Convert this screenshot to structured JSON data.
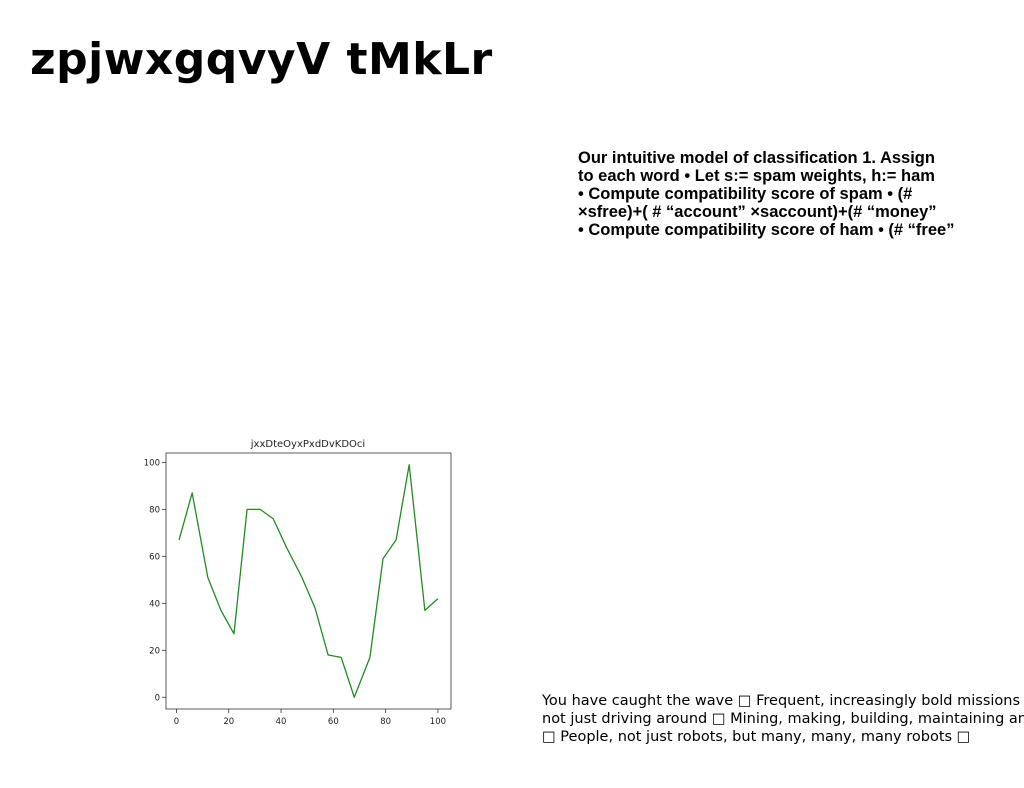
{
  "slide": {
    "title": "zpjwxgqvyV tMkLr"
  },
  "text_top": {
    "lines": [
      "Our intuitive model of classification 1. Assign",
      "to each word • Let s:= spam weights, h:= ham",
      "• Compute compatibility score of spam • (#",
      "×sfree)+( # “account” ×saccount)+(# “money”",
      "• Compute compatibility score of ham • (# “free”"
    ]
  },
  "text_bottom": {
    "lines": [
      "You have caught the wave □ Frequent, increasingly bold missions □",
      "not just driving around □ Mining, making, building, maintaining and",
      "□ People, not just robots, but many, many, many robots □"
    ]
  },
  "chart_data": {
    "type": "line",
    "title": "jxxDteOyxPxdDvKDOci",
    "xlabel": "",
    "ylabel": "",
    "xlim": [
      -4,
      105
    ],
    "ylim": [
      -5,
      104
    ],
    "xticks": [
      0,
      20,
      40,
      60,
      80,
      100
    ],
    "yticks": [
      0,
      20,
      40,
      60,
      80,
      100
    ],
    "grid": false,
    "line_color": "#228b22",
    "series": [
      {
        "x": [
          1,
          6,
          12,
          17,
          22,
          27,
          32,
          37,
          42,
          48,
          53,
          58,
          63,
          68,
          74,
          79,
          84,
          89,
          95,
          100
        ],
        "y": [
          67,
          87,
          51,
          37,
          27,
          80,
          80,
          76,
          64,
          51,
          38,
          18,
          17,
          0,
          17,
          59,
          67,
          99,
          37,
          42
        ]
      }
    ]
  }
}
